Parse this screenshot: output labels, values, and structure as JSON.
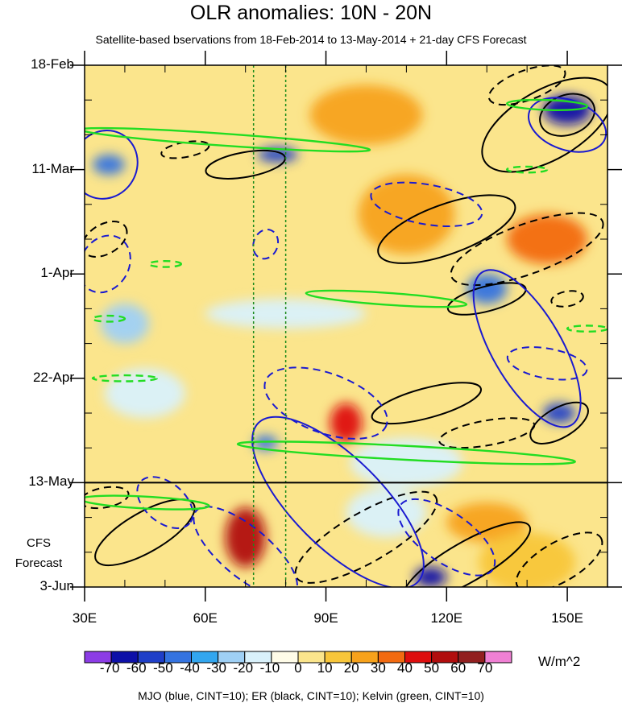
{
  "title": "OLR anomalies: 10N - 20N",
  "subtitle": "Satellite-based bservations from 18-Feb-2014 to 13-May-2014 + 21-day CFS Forecast",
  "footer": "MJO (blue, CINT=10); ER (black, CINT=10); Kelvin (green, CINT=10)",
  "units": "W/m^2",
  "cfs_label": [
    "CFS",
    "Forecast"
  ],
  "chart_data": {
    "type": "heatmap",
    "title": "OLR anomalies: 10N - 20N",
    "subtitle": "Satellite-based bservations from 18-Feb-2014 to 13-May-2014 + 21-day CFS Forecast",
    "x_axis": {
      "range": [
        30,
        160
      ],
      "ticks": [
        30,
        60,
        90,
        120,
        150
      ],
      "tick_labels": [
        "30E",
        "60E",
        "90E",
        "120E",
        "150E"
      ],
      "minor_ticks": [
        40,
        50,
        70,
        80,
        100,
        110,
        130,
        140,
        160
      ]
    },
    "y_axis": {
      "direction": "time increasing downward",
      "start": "18-Feb",
      "end": "3-Jun",
      "days_span": 105,
      "tick_labels": [
        "18-Feb",
        "11-Mar",
        "1-Apr",
        "22-Apr",
        "13-May",
        "3-Jun"
      ],
      "tick_days": [
        0,
        21,
        42,
        63,
        84,
        105
      ],
      "minor_tick_days": [
        7,
        14,
        28,
        35,
        49,
        56,
        70,
        77,
        91,
        98
      ]
    },
    "forecast_start": "13-May",
    "reference_lines_lon": [
      72,
      80
    ],
    "colorbar": {
      "levels": [
        -70,
        -60,
        -50,
        -40,
        -30,
        -20,
        -10,
        0,
        10,
        20,
        30,
        40,
        50,
        60,
        70
      ],
      "colors": [
        "#8c3ce6",
        "#0d10a8",
        "#1f3fc8",
        "#3473e0",
        "#32a6ef",
        "#9fd0f5",
        "#d9f1fb",
        "#fffce8",
        "#fbe58c",
        "#f8c63a",
        "#f7a21b",
        "#f26a10",
        "#de0e0e",
        "#b10d0d",
        "#922020",
        "#f080d4"
      ],
      "label_levels": [
        -70,
        -60,
        -50,
        -40,
        -30,
        -20,
        -10,
        0,
        10,
        20,
        30,
        40,
        50,
        60,
        70
      ],
      "units": "W/m^2"
    },
    "anomaly_features": [
      {
        "lon": 150,
        "day": 9,
        "value": -70,
        "rx": 6,
        "ry": 3
      },
      {
        "lon": 36,
        "day": 20,
        "value": -50,
        "rx": 4,
        "ry": 2
      },
      {
        "lon": 78,
        "day": 18,
        "value": -60,
        "rx": 5,
        "ry": 1.5
      },
      {
        "lon": 130,
        "day": 45,
        "value": -50,
        "rx": 5,
        "ry": 3
      },
      {
        "lon": 148,
        "day": 70,
        "value": -60,
        "rx": 4,
        "ry": 2
      },
      {
        "lon": 75,
        "day": 76,
        "value": -50,
        "rx": 3,
        "ry": 1.5
      },
      {
        "lon": 95,
        "day": 72,
        "value": 40,
        "rx": 4,
        "ry": 4
      },
      {
        "lon": 70,
        "day": 95,
        "value": 50,
        "rx": 5,
        "ry": 6
      },
      {
        "lon": 116,
        "day": 103,
        "value": -70,
        "rx": 4,
        "ry": 2
      },
      {
        "lon": 100,
        "day": 10,
        "value": 20,
        "rx": 14,
        "ry": 6
      },
      {
        "lon": 110,
        "day": 30,
        "value": 20,
        "rx": 12,
        "ry": 8
      },
      {
        "lon": 145,
        "day": 35,
        "value": 30,
        "rx": 10,
        "ry": 5
      },
      {
        "lon": 80,
        "day": 50,
        "value": -20,
        "rx": 20,
        "ry": 3
      },
      {
        "lon": 40,
        "day": 52,
        "value": -30,
        "rx": 6,
        "ry": 4
      },
      {
        "lon": 45,
        "day": 66,
        "value": -20,
        "rx": 10,
        "ry": 5
      },
      {
        "lon": 110,
        "day": 80,
        "value": -20,
        "rx": 14,
        "ry": 5
      },
      {
        "lon": 130,
        "day": 92,
        "value": 20,
        "rx": 10,
        "ry": 4
      },
      {
        "lon": 105,
        "day": 90,
        "value": -20,
        "rx": 10,
        "ry": 5
      },
      {
        "lon": 140,
        "day": 100,
        "value": 10,
        "rx": 12,
        "ry": 6
      }
    ],
    "contours": {
      "mjo": {
        "color": "blue",
        "cint": 10,
        "shapes": [
          {
            "lon": 35,
            "day": 20,
            "rx": 8,
            "ry": 7,
            "rot": 30,
            "dash": false
          },
          {
            "lon": 93,
            "day": 88,
            "rx": 28,
            "ry": 9,
            "rot": 45,
            "dash": false
          },
          {
            "lon": 140,
            "day": 57,
            "rx": 22,
            "ry": 7,
            "rot": 60,
            "dash": false
          },
          {
            "lon": 150,
            "day": 12,
            "rx": 10,
            "ry": 5,
            "rot": 20,
            "dash": false
          },
          {
            "lon": 35,
            "day": 40,
            "rx": 6,
            "ry": 6,
            "rot": 30,
            "dash": true
          },
          {
            "lon": 75,
            "day": 36,
            "rx": 3,
            "ry": 3,
            "rot": 20,
            "dash": true
          },
          {
            "lon": 90,
            "day": 68,
            "rx": 16,
            "ry": 6,
            "rot": 20,
            "dash": true
          },
          {
            "lon": 115,
            "day": 28,
            "rx": 14,
            "ry": 4,
            "rot": 10,
            "dash": true
          },
          {
            "lon": 70,
            "day": 98,
            "rx": 16,
            "ry": 5,
            "rot": 40,
            "dash": true
          },
          {
            "lon": 120,
            "day": 95,
            "rx": 14,
            "ry": 5,
            "rot": 35,
            "dash": true
          },
          {
            "lon": 50,
            "day": 88,
            "rx": 8,
            "ry": 4,
            "rot": 40,
            "dash": true
          },
          {
            "lon": 145,
            "day": 60,
            "rx": 10,
            "ry": 3,
            "rot": 10,
            "dash": true
          }
        ]
      },
      "er": {
        "color": "black",
        "cint": 10,
        "shapes": [
          {
            "lon": 145,
            "day": 12,
            "rx": 18,
            "ry": 7,
            "rot": -30,
            "dash": false
          },
          {
            "lon": 150,
            "day": 10,
            "rx": 7,
            "ry": 4,
            "rot": -20,
            "dash": false
          },
          {
            "lon": 120,
            "day": 33,
            "rx": 18,
            "ry": 5,
            "rot": -20,
            "dash": false
          },
          {
            "lon": 148,
            "day": 72,
            "rx": 8,
            "ry": 3,
            "rot": -30,
            "dash": false
          },
          {
            "lon": 125,
            "day": 100,
            "rx": 18,
            "ry": 4,
            "rot": -30,
            "dash": false
          },
          {
            "lon": 45,
            "day": 94,
            "rx": 14,
            "ry": 4,
            "rot": -30,
            "dash": false
          },
          {
            "lon": 70,
            "day": 20,
            "rx": 10,
            "ry": 2.5,
            "rot": -10,
            "dash": false
          },
          {
            "lon": 130,
            "day": 47,
            "rx": 10,
            "ry": 2.5,
            "rot": -15,
            "dash": false
          },
          {
            "lon": 115,
            "day": 68,
            "rx": 14,
            "ry": 3,
            "rot": -15,
            "dash": false
          },
          {
            "lon": 140,
            "day": 4,
            "rx": 10,
            "ry": 3,
            "rot": -20,
            "dash": true
          },
          {
            "lon": 55,
            "day": 17,
            "rx": 6,
            "ry": 1.5,
            "rot": -10,
            "dash": true
          },
          {
            "lon": 140,
            "day": 37,
            "rx": 20,
            "ry": 5,
            "rot": -20,
            "dash": true
          },
          {
            "lon": 130,
            "day": 74,
            "rx": 12,
            "ry": 2.5,
            "rot": -10,
            "dash": true
          },
          {
            "lon": 100,
            "day": 95,
            "rx": 20,
            "ry": 5,
            "rot": -30,
            "dash": true
          },
          {
            "lon": 148,
            "day": 100,
            "rx": 12,
            "ry": 4,
            "rot": -30,
            "dash": true
          },
          {
            "lon": 35,
            "day": 35,
            "rx": 6,
            "ry": 3,
            "rot": -30,
            "dash": true
          },
          {
            "lon": 35,
            "day": 87,
            "rx": 6,
            "ry": 2,
            "rot": -10,
            "dash": true
          },
          {
            "lon": 150,
            "day": 47,
            "rx": 4,
            "ry": 1.5,
            "rot": -10,
            "dash": true
          }
        ]
      },
      "kelvin": {
        "color": "green",
        "cint": 10,
        "shapes": [
          {
            "lon": 65,
            "day": 15,
            "rx": 36,
            "ry": 1.2,
            "rot": 4,
            "dash": false
          },
          {
            "lon": 105,
            "day": 47,
            "rx": 20,
            "ry": 1.2,
            "rot": 4,
            "dash": false
          },
          {
            "lon": 110,
            "day": 78,
            "rx": 42,
            "ry": 1.4,
            "rot": 3,
            "dash": false
          },
          {
            "lon": 45,
            "day": 88,
            "rx": 16,
            "ry": 1.2,
            "rot": 3,
            "dash": false
          },
          {
            "lon": 145,
            "day": 8,
            "rx": 10,
            "ry": 1,
            "rot": 2,
            "dash": false
          },
          {
            "lon": 50,
            "day": 40,
            "rx": 4,
            "ry": 0.6,
            "rot": 0,
            "dash": true
          },
          {
            "lon": 40,
            "day": 63,
            "rx": 8,
            "ry": 0.6,
            "rot": 0,
            "dash": true
          },
          {
            "lon": 140,
            "day": 21,
            "rx": 5,
            "ry": 0.6,
            "rot": 0,
            "dash": true
          },
          {
            "lon": 155,
            "day": 53,
            "rx": 5,
            "ry": 0.6,
            "rot": 0,
            "dash": true
          },
          {
            "lon": 36,
            "day": 51,
            "rx": 4,
            "ry": 0.6,
            "rot": 0,
            "dash": true
          }
        ]
      }
    }
  }
}
